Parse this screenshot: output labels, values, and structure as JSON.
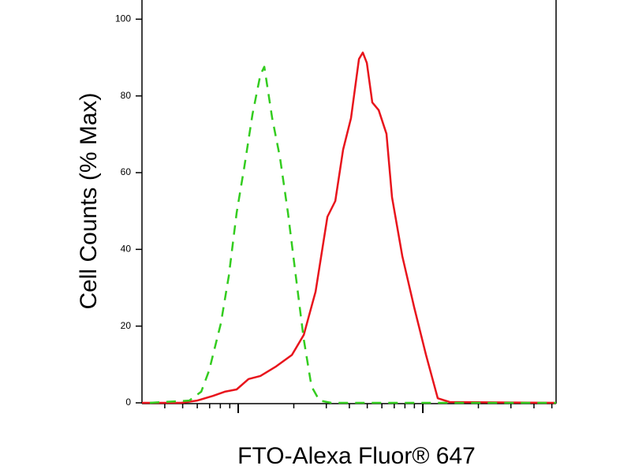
{
  "chart_data": {
    "type": "line",
    "xlabel": "FTO-Alexa Fluor® 647",
    "ylabel": "Cell Counts (% Max)",
    "log_x": true,
    "xlim": [
      301,
      52700
    ],
    "xticks_major": [
      1000,
      10000
    ],
    "xticks_minor": [
      400,
      500,
      600,
      700,
      800,
      900,
      2000,
      3000,
      4000,
      5000,
      6000,
      7000,
      8000,
      9000,
      20000,
      30000,
      40000,
      50000
    ],
    "ylim": [
      0,
      105
    ],
    "yticks": [
      0,
      20,
      40,
      60,
      80,
      100
    ],
    "series": [
      {
        "color": "#e8141c",
        "dashed": false,
        "x": [
          301,
          492,
          600,
          730,
          845,
          980,
          1137,
          1318,
          1604,
          1953,
          2265,
          2625,
          3043,
          3357,
          3700,
          4083,
          4508,
          4732,
          4975,
          5324,
          5764,
          6356,
          6808,
          7745,
          8975,
          10400,
          12050,
          13970,
          52700
        ],
        "values": [
          0,
          0,
          0.6,
          1.8,
          2.9,
          3.5,
          6.2,
          7.0,
          9.5,
          12.5,
          17.7,
          29.0,
          48.5,
          52.6,
          66.0,
          74.2,
          89.6,
          91.3,
          88.6,
          78.3,
          76.3,
          70.1,
          53.6,
          38.2,
          24.9,
          12.5,
          1.2,
          0.2,
          0
        ]
      },
      {
        "color": "#33cc1f",
        "dashed": true,
        "x": [
          332,
          543,
          630,
          695,
          805,
          889,
          980,
          1082,
          1194,
          1318,
          1384,
          1527,
          1684,
          1859,
          2051,
          2265,
          2494,
          2754,
          3191,
          52700
        ],
        "values": [
          0,
          0.6,
          2.9,
          8.4,
          20.7,
          33.1,
          49.5,
          61.8,
          75.2,
          85.5,
          87.6,
          74.2,
          63.9,
          49.5,
          33.1,
          16.6,
          4.3,
          0.6,
          0,
          0
        ]
      }
    ]
  }
}
